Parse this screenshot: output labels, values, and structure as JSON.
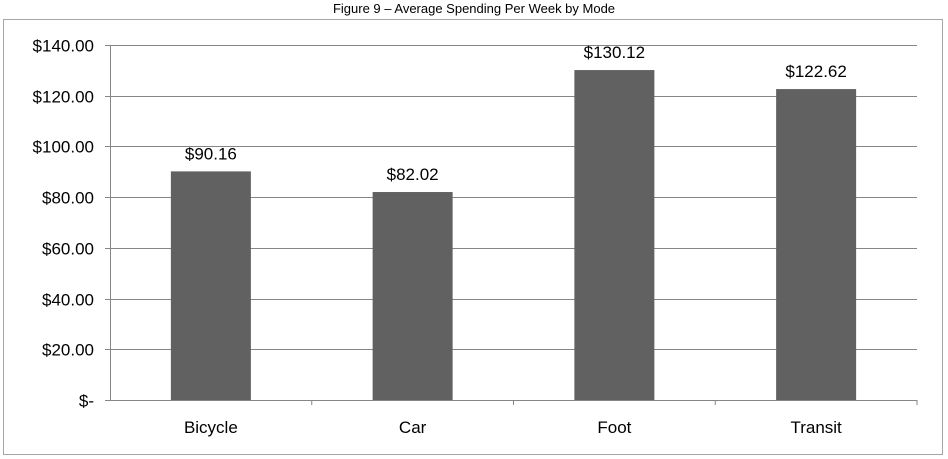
{
  "figure": {
    "title": "Figure 9 – Average Spending Per Week by Mode"
  },
  "chart_data": {
    "type": "bar",
    "title": "Figure 9 – Average Spending Per Week by Mode",
    "xlabel": "",
    "ylabel": "",
    "categories": [
      "Bicycle",
      "Car",
      "Foot",
      "Transit"
    ],
    "values": [
      90.16,
      82.02,
      130.12,
      122.62
    ],
    "data_labels": [
      "$90.16",
      "$82.02",
      "$130.12",
      "$122.62"
    ],
    "ylim": [
      0,
      140
    ],
    "yticks": [
      0,
      20,
      40,
      60,
      80,
      100,
      120,
      140
    ],
    "ytick_labels": [
      "$-",
      "$20.00",
      "$40.00",
      "$60.00",
      "$80.00",
      "$100.00",
      "$120.00",
      "$140.00"
    ],
    "grid": true,
    "legend": "none",
    "colors": {
      "bar": "#616161",
      "grid": "#868686",
      "axis": "#868686",
      "frame": "#a6a6a6"
    }
  }
}
